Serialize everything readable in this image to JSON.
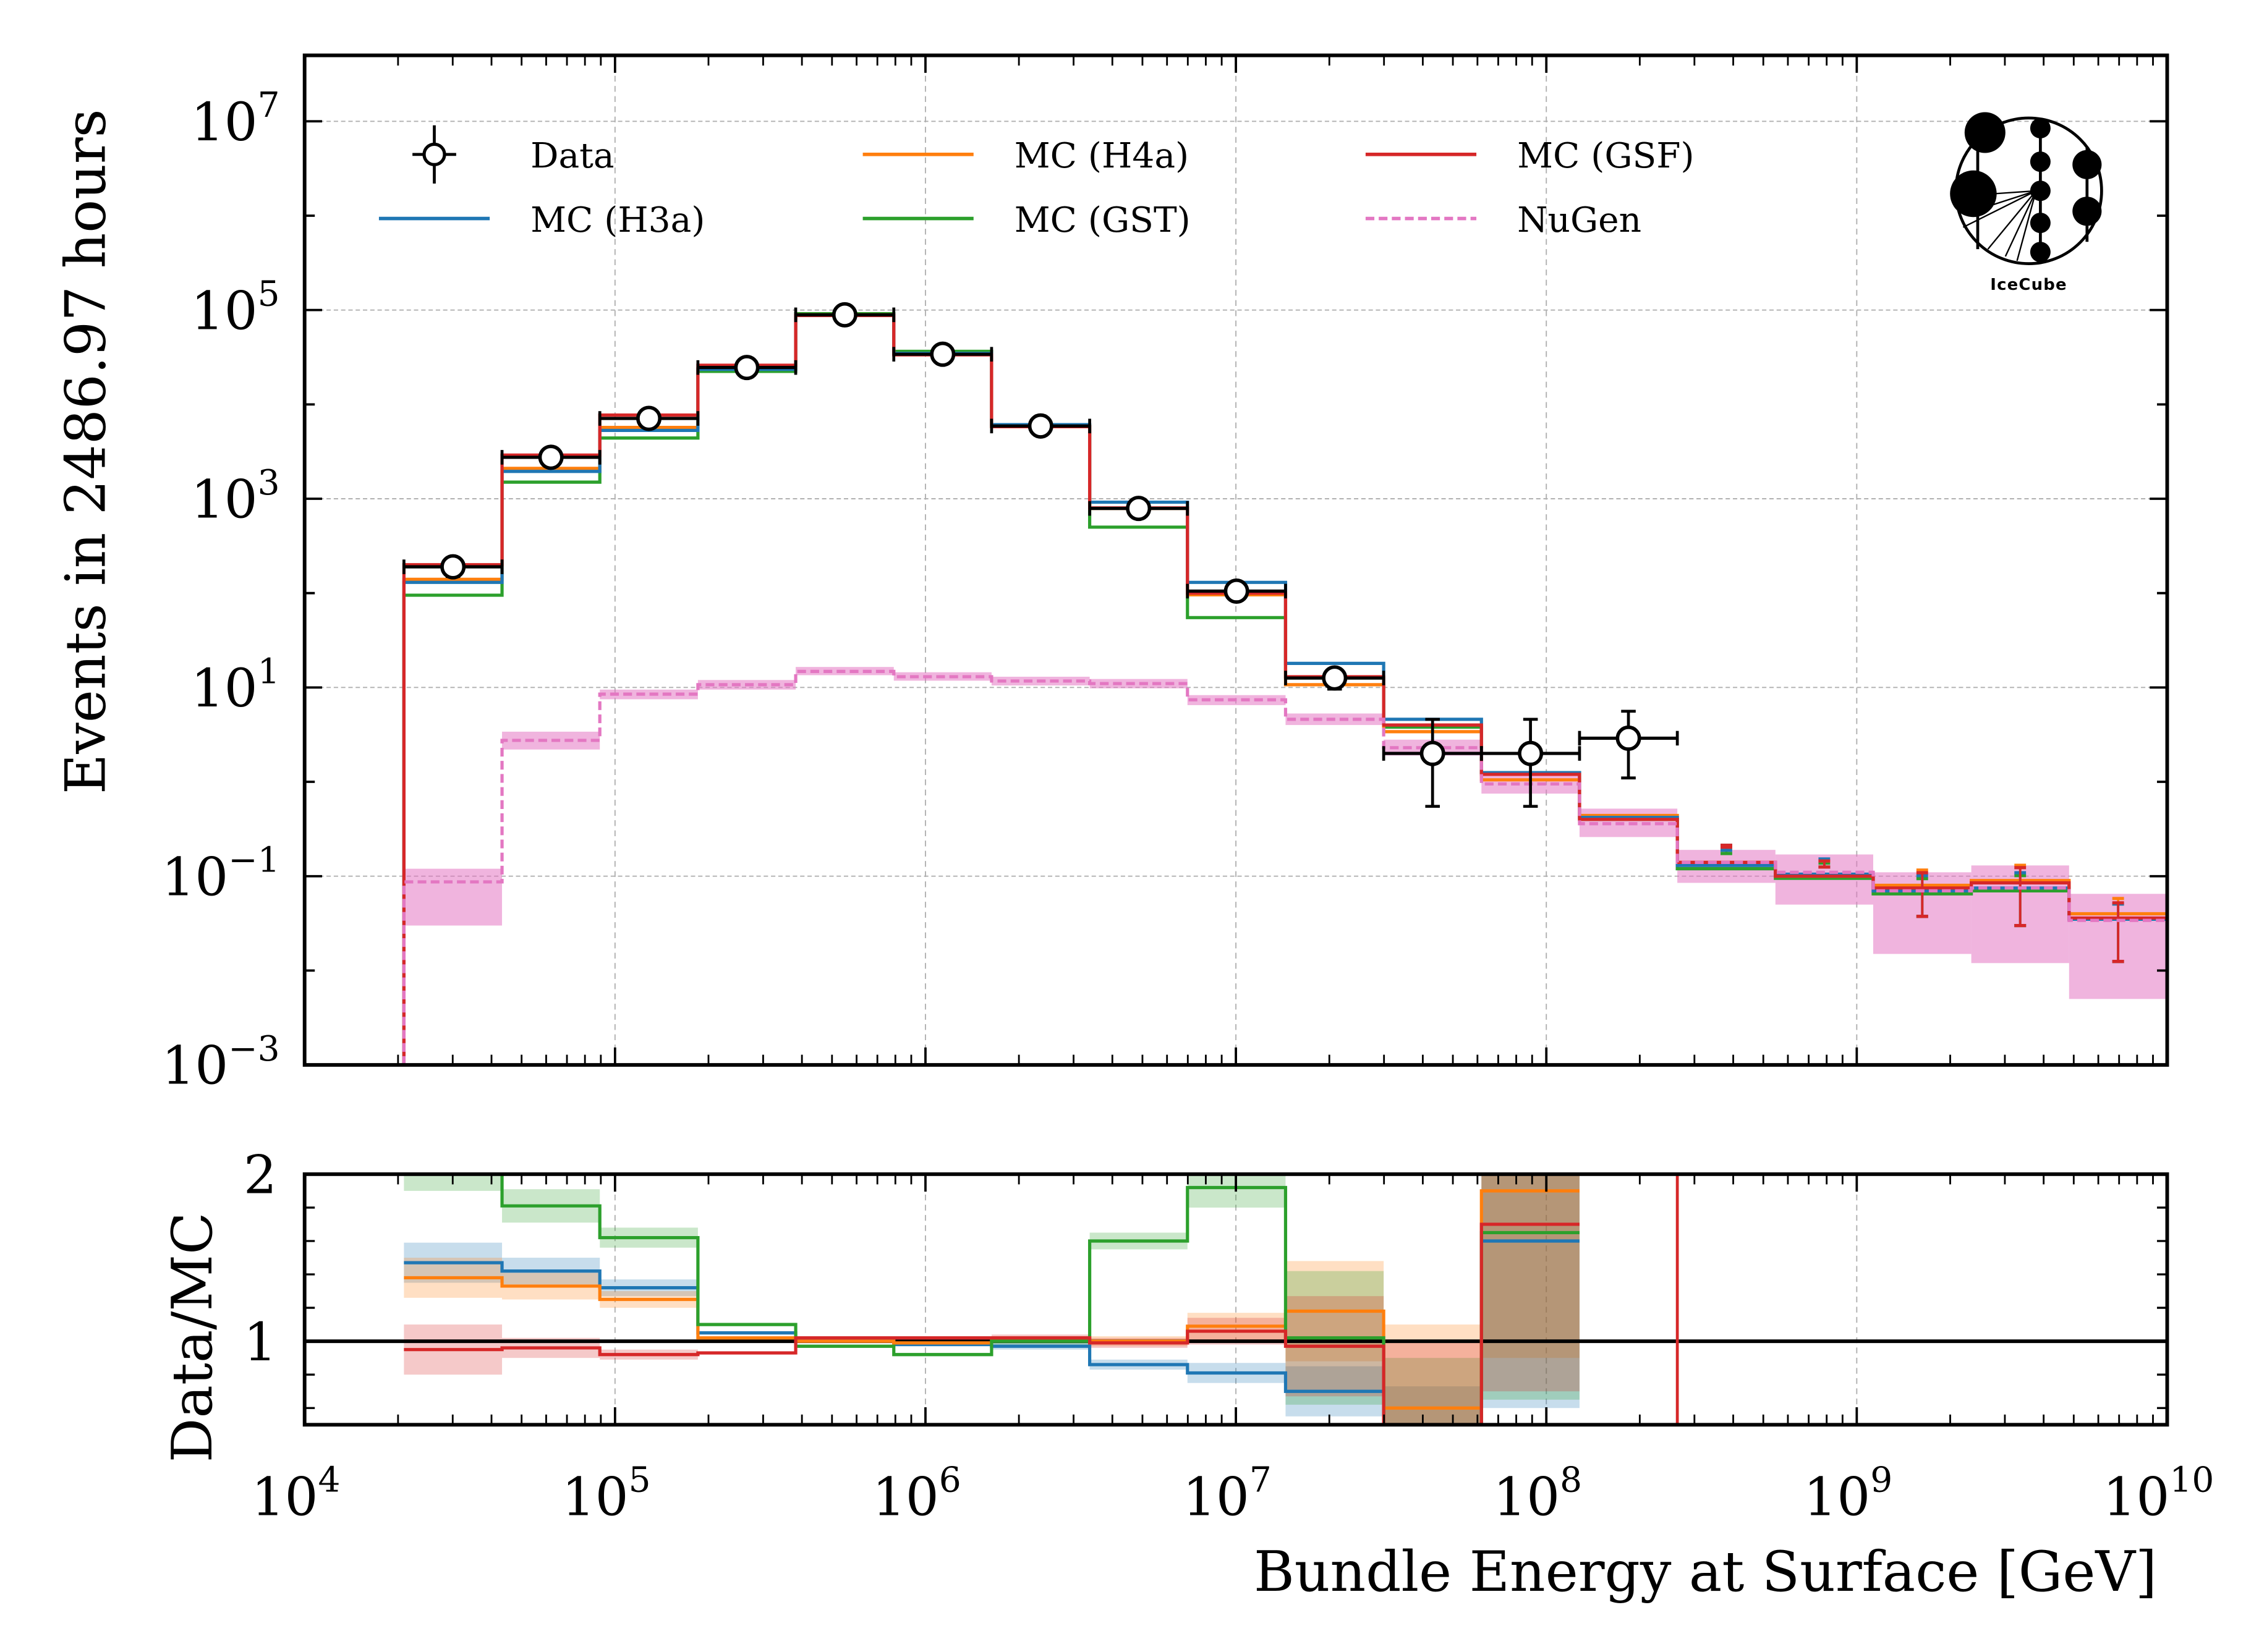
{
  "chart_data": [
    {
      "type": "line",
      "panel": "main",
      "title": "",
      "xlabel": "",
      "ylabel": "Events in 2486.97 hours",
      "xscale": "log",
      "yscale": "log",
      "xlim": [
        10000,
        10000000000
      ],
      "ylim": [
        0.001,
        50000000
      ],
      "grid": true,
      "legend_position": "top-left",
      "y_tick_labels": [
        {
          "value": 10000000,
          "base": "10",
          "exp": "7"
        },
        {
          "value": 100000,
          "base": "10",
          "exp": "5"
        },
        {
          "value": 1000,
          "base": "10",
          "exp": "3"
        },
        {
          "value": 10,
          "base": "10",
          "exp": "1"
        },
        {
          "value": 0.1,
          "base": "10",
          "exp": "−1"
        },
        {
          "value": 0.001,
          "base": "10",
          "exp": "−3"
        }
      ],
      "bin_edges_log10": [
        4.32,
        4.636,
        4.951,
        5.267,
        5.582,
        5.898,
        6.213,
        6.529,
        6.844,
        7.16,
        7.476,
        7.791,
        8.107,
        8.422,
        8.738,
        9.053,
        9.369,
        9.684,
        10.0
      ],
      "series": [
        {
          "name": "Data",
          "kind": "points",
          "color": "#000000",
          "values": [
            190,
            2750,
            7100,
            24600,
            89000,
            34000,
            5900,
            790,
            105,
            12.6,
            2.0,
            2.0,
            2.9,
            null,
            null,
            null,
            null,
            null
          ],
          "err_low": [
            40,
            300,
            600,
            1500,
            3000,
            1800,
            800,
            80,
            15,
            3,
            1.45,
            1.45,
            1.8,
            null,
            null,
            null,
            null,
            null
          ],
          "err_high": [
            40,
            300,
            600,
            1500,
            3000,
            1800,
            800,
            80,
            15,
            3,
            2.6,
            2.6,
            2.7,
            null,
            null,
            null,
            null,
            null
          ]
        },
        {
          "name": "MC (H3a)",
          "kind": "step",
          "color": "#1f77b4",
          "values": [
            130,
            1950,
            5300,
            23500,
            88500,
            34700,
            6100,
            920,
            130,
            18,
            4.6,
            1.25,
            0.42,
            0.13,
            0.105,
            0.07,
            0.075,
            0.035
          ]
        },
        {
          "name": "MC (H4a)",
          "kind": "step",
          "color": "#ff7f0e",
          "values": [
            140,
            2100,
            5700,
            24000,
            89000,
            34300,
            5850,
            790,
            96,
            10.7,
            3.4,
            1.05,
            0.44,
            0.14,
            0.1,
            0.08,
            0.09,
            0.04
          ]
        },
        {
          "name": "MC (GST)",
          "kind": "step",
          "color": "#2ca02c",
          "values": [
            95,
            1500,
            4400,
            22400,
            91500,
            36500,
            5900,
            500,
            55,
            12.6,
            3.8,
            1.25,
            0.4,
            0.12,
            0.095,
            0.065,
            0.07,
            0.035
          ]
        },
        {
          "name": "MC (GSF)",
          "kind": "step",
          "color": "#d62728",
          "values": [
            200,
            2900,
            7700,
            26000,
            87500,
            33500,
            5800,
            800,
            100,
            13,
            4.0,
            1.2,
            0.4,
            0.14,
            0.1,
            0.075,
            0.085,
            0.036
          ]
        },
        {
          "name": "NuGen",
          "kind": "step-dashed",
          "color": "#e377c2",
          "values": [
            0.087,
            2.75,
            8.5,
            10.7,
            14.8,
            13.0,
            11.7,
            11.0,
            7.4,
            4.6,
            2.3,
            0.95,
            0.36,
            0.14,
            0.11,
            0.07,
            0.075,
            0.034
          ],
          "band_low": [
            0.03,
            2.2,
            7.5,
            9.5,
            13.5,
            11.8,
            10.5,
            9.8,
            6.5,
            4.0,
            1.9,
            0.75,
            0.26,
            0.085,
            0.05,
            0.015,
            0.012,
            0.005
          ],
          "band_high": [
            0.12,
            3.4,
            9.5,
            12.0,
            16.5,
            14.5,
            13.0,
            12.3,
            8.3,
            5.3,
            2.8,
            1.25,
            0.52,
            0.19,
            0.17,
            0.11,
            0.13,
            0.065
          ]
        }
      ]
    },
    {
      "type": "line",
      "panel": "ratio",
      "title": "",
      "xlabel": "Bundle Energy at Surface [GeV]",
      "ylabel": "Data/MC",
      "xscale": "log",
      "xlim": [
        10000,
        10000000000
      ],
      "ylim": [
        0.5,
        2.0
      ],
      "grid": true,
      "reference_line": 1,
      "x_tick_labels": [
        {
          "value": 10000,
          "base": "10",
          "exp": "4"
        },
        {
          "value": 100000,
          "base": "10",
          "exp": "5"
        },
        {
          "value": 1000000,
          "base": "10",
          "exp": "6"
        },
        {
          "value": 10000000,
          "base": "10",
          "exp": "7"
        },
        {
          "value": 100000000,
          "base": "10",
          "exp": "8"
        },
        {
          "value": 1000000000,
          "base": "10",
          "exp": "9"
        },
        {
          "value": 10000000000,
          "base": "10",
          "exp": "10"
        }
      ],
      "y_tick_labels": [
        {
          "value": 2,
          "label": "2"
        },
        {
          "value": 1,
          "label": "1"
        }
      ],
      "series": [
        {
          "name": "MC (H3a)",
          "color": "#1f77b4",
          "values": [
            1.47,
            1.42,
            1.32,
            1.05,
            1.01,
            0.98,
            0.97,
            0.86,
            0.81,
            0.7,
            0.43,
            1.6,
            null,
            null,
            null,
            null,
            null,
            null
          ],
          "unc": [
            0.12,
            0.08,
            0.05,
            0.01,
            0.01,
            0.01,
            0.02,
            0.03,
            0.06,
            0.15,
            0.3,
            1.0,
            null,
            null,
            null,
            null,
            null,
            null
          ]
        },
        {
          "name": "MC (H4a)",
          "color": "#ff7f0e",
          "values": [
            1.38,
            1.33,
            1.25,
            1.02,
            1.0,
            0.99,
            1.01,
            1.0,
            1.09,
            1.18,
            0.6,
            1.9,
            null,
            null,
            null,
            null,
            null,
            null
          ],
          "unc": [
            0.12,
            0.08,
            0.05,
            0.01,
            0.01,
            0.01,
            0.02,
            0.03,
            0.08,
            0.3,
            0.5,
            1.0,
            null,
            null,
            null,
            null,
            null,
            null
          ]
        },
        {
          "name": "MC (GST)",
          "color": "#2ca02c",
          "values": [
            2.05,
            1.81,
            1.62,
            1.1,
            0.97,
            0.92,
            1.0,
            1.6,
            1.92,
            1.02,
            0.4,
            1.65,
            null,
            null,
            null,
            null,
            null,
            null
          ],
          "unc": [
            0.15,
            0.1,
            0.06,
            0.01,
            0.01,
            0.01,
            0.02,
            0.05,
            0.12,
            0.4,
            0.5,
            1.0,
            null,
            null,
            null,
            null,
            null,
            null
          ]
        },
        {
          "name": "MC (GSF)",
          "color": "#d62728",
          "values": [
            0.95,
            0.96,
            0.92,
            0.93,
            1.02,
            1.02,
            1.02,
            0.99,
            1.06,
            0.97,
            0.5,
            1.7,
            null,
            null,
            null,
            null,
            null,
            null
          ],
          "unc": [
            0.15,
            0.06,
            0.03,
            0.01,
            0.01,
            0.01,
            0.02,
            0.03,
            0.08,
            0.3,
            0.5,
            1.0,
            null,
            null,
            null,
            null,
            null,
            null
          ]
        }
      ],
      "extra_vertical_line": {
        "color": "#d62728",
        "x_log10": 8.422
      }
    }
  ],
  "legend": {
    "items": [
      {
        "label": "Data",
        "color": "#000000",
        "style": "marker"
      },
      {
        "label": "MC (H3a)",
        "color": "#1f77b4",
        "style": "solid"
      },
      {
        "label": "MC (H4a)",
        "color": "#ff7f0e",
        "style": "solid"
      },
      {
        "label": "MC (GST)",
        "color": "#2ca02c",
        "style": "solid"
      },
      {
        "label": "MC (GSF)",
        "color": "#d62728",
        "style": "solid"
      },
      {
        "label": "NuGen",
        "color": "#e377c2",
        "style": "dashed"
      }
    ]
  },
  "logo": {
    "text": "IceCube"
  }
}
